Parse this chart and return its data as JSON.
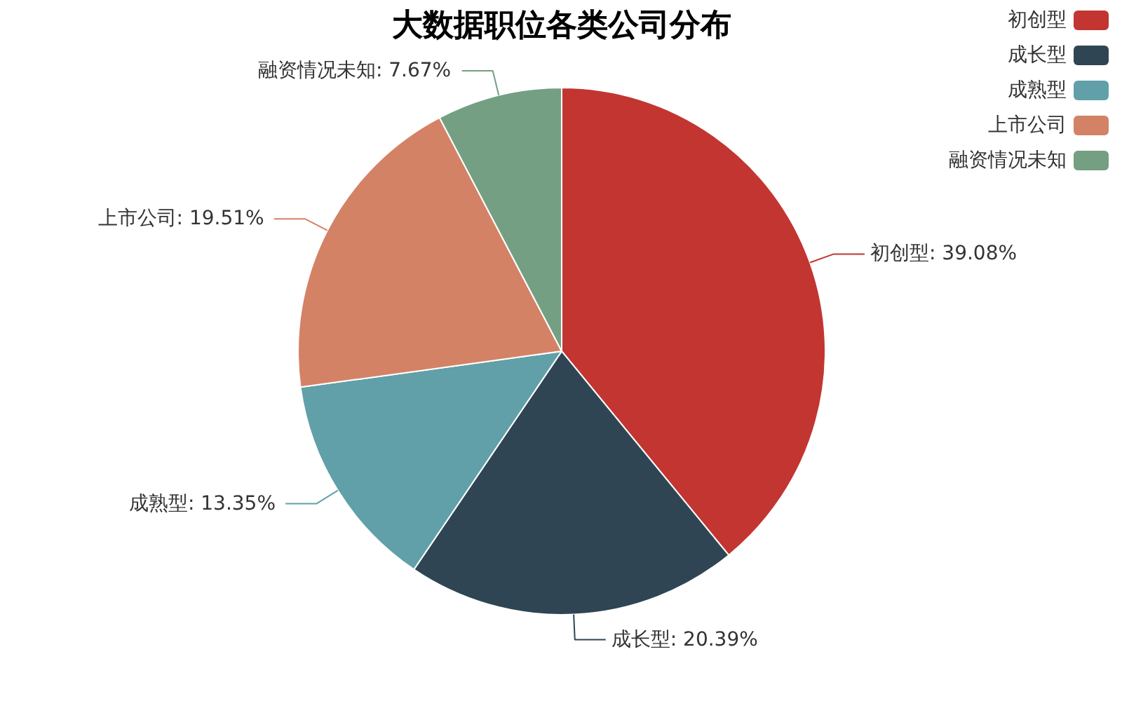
{
  "chart_data": {
    "type": "pie",
    "title": "大数据职位各类公司分布",
    "categories": [
      "初创型",
      "成长型",
      "成熟型",
      "上市公司",
      "融资情况未知"
    ],
    "values": [
      39.08,
      20.39,
      13.35,
      19.51,
      7.67
    ],
    "colors": [
      "#c23531",
      "#2f4554",
      "#61a0a8",
      "#d48265",
      "#749f83"
    ],
    "value_labels": [
      ": 39.08%",
      ": 20.39%",
      ": 13.35%",
      ": 19.51%",
      ": 7.67%"
    ],
    "legend": "top right"
  }
}
